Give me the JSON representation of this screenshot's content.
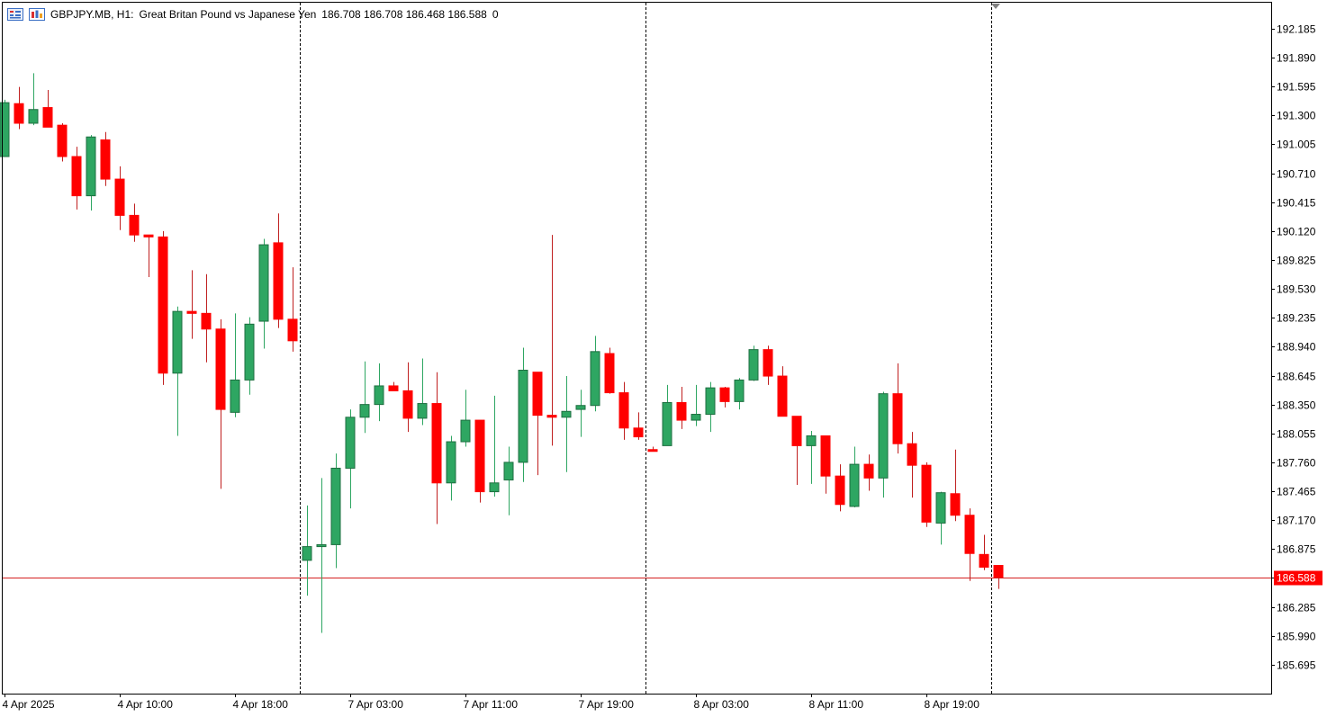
{
  "header": {
    "symbol": "GBPJPY.MB, H1:",
    "description": "Great Britan Pound vs Japanese Yen",
    "ohlc": "186.708 186.708 186.468 186.588",
    "volume": "0"
  },
  "icons": {
    "menu": "chart-menu-icon",
    "indicator": "chart-window-icon"
  },
  "colors": {
    "bull": "#2ea662",
    "bear": "#ff0000",
    "bear_wick": "#c02020",
    "price_line": "#d42020",
    "price_label_bg": "#ff0000",
    "axis": "#000000"
  },
  "chart_data": {
    "type": "candlestick",
    "y_axis": {
      "min": 185.4,
      "max": 192.45,
      "ticks": [
        "192.185",
        "191.890",
        "191.595",
        "191.300",
        "191.005",
        "190.710",
        "190.415",
        "190.120",
        "189.825",
        "189.530",
        "189.235",
        "188.940",
        "188.645",
        "188.350",
        "188.055",
        "187.760",
        "187.465",
        "187.170",
        "186.875",
        "186.580",
        "186.285",
        "185.990",
        "185.695"
      ]
    },
    "x_labels": [
      {
        "label": "4 Apr 2025",
        "index": 0
      },
      {
        "label": "4 Apr 10:00",
        "index": 8
      },
      {
        "label": "4 Apr 18:00",
        "index": 16
      },
      {
        "label": "7 Apr 03:00",
        "index": 24
      },
      {
        "label": "7 Apr 11:00",
        "index": 32
      },
      {
        "label": "7 Apr 19:00",
        "index": 40
      },
      {
        "label": "8 Apr 03:00",
        "index": 48
      },
      {
        "label": "8 Apr 11:00",
        "index": 56
      },
      {
        "label": "8 Apr 19:00",
        "index": 64
      }
    ],
    "period_separators": [
      20.5,
      44.5,
      68.5
    ],
    "current_price": "186.588",
    "candles": [
      {
        "o": 190.88,
        "h": 191.46,
        "l": 190.88,
        "c": 191.43
      },
      {
        "o": 191.42,
        "h": 191.59,
        "l": 191.16,
        "c": 191.22
      },
      {
        "o": 191.22,
        "h": 191.73,
        "l": 191.2,
        "c": 191.36
      },
      {
        "o": 191.38,
        "h": 191.56,
        "l": 191.18,
        "c": 191.18
      },
      {
        "o": 191.2,
        "h": 191.22,
        "l": 190.83,
        "c": 190.88
      },
      {
        "o": 190.88,
        "h": 190.98,
        "l": 190.34,
        "c": 190.48
      },
      {
        "o": 190.48,
        "h": 191.1,
        "l": 190.33,
        "c": 191.08
      },
      {
        "o": 191.05,
        "h": 191.13,
        "l": 190.58,
        "c": 190.65
      },
      {
        "o": 190.65,
        "h": 190.78,
        "l": 190.13,
        "c": 190.28
      },
      {
        "o": 190.28,
        "h": 190.4,
        "l": 190.01,
        "c": 190.08
      },
      {
        "o": 190.08,
        "h": 190.08,
        "l": 189.65,
        "c": 190.06
      },
      {
        "o": 190.06,
        "h": 190.12,
        "l": 188.55,
        "c": 188.67
      },
      {
        "o": 188.67,
        "h": 189.35,
        "l": 188.03,
        "c": 189.3
      },
      {
        "o": 189.3,
        "h": 189.72,
        "l": 189.02,
        "c": 189.28
      },
      {
        "o": 189.28,
        "h": 189.68,
        "l": 188.78,
        "c": 189.12
      },
      {
        "o": 189.12,
        "h": 189.22,
        "l": 187.49,
        "c": 188.3
      },
      {
        "o": 188.27,
        "h": 189.28,
        "l": 188.22,
        "c": 188.6
      },
      {
        "o": 188.6,
        "h": 189.24,
        "l": 188.45,
        "c": 189.17
      },
      {
        "o": 189.2,
        "h": 190.04,
        "l": 188.92,
        "c": 189.98
      },
      {
        "o": 190.0,
        "h": 190.3,
        "l": 189.13,
        "c": 189.22
      },
      {
        "o": 189.22,
        "h": 189.75,
        "l": 188.89,
        "c": 189.0
      },
      {
        "o": 186.76,
        "h": 187.32,
        "l": 186.4,
        "c": 186.9
      },
      {
        "o": 186.9,
        "h": 187.6,
        "l": 186.02,
        "c": 186.92
      },
      {
        "o": 186.92,
        "h": 187.85,
        "l": 186.68,
        "c": 187.7
      },
      {
        "o": 187.7,
        "h": 188.3,
        "l": 187.29,
        "c": 188.22
      },
      {
        "o": 188.22,
        "h": 188.79,
        "l": 188.06,
        "c": 188.35
      },
      {
        "o": 188.35,
        "h": 188.77,
        "l": 188.18,
        "c": 188.54
      },
      {
        "o": 188.54,
        "h": 188.58,
        "l": 188.51,
        "c": 188.49
      },
      {
        "o": 188.49,
        "h": 188.78,
        "l": 188.07,
        "c": 188.21
      },
      {
        "o": 188.21,
        "h": 188.82,
        "l": 188.14,
        "c": 188.36
      },
      {
        "o": 188.36,
        "h": 188.68,
        "l": 187.13,
        "c": 187.55
      },
      {
        "o": 187.55,
        "h": 188.03,
        "l": 187.37,
        "c": 187.97
      },
      {
        "o": 187.97,
        "h": 188.5,
        "l": 187.92,
        "c": 188.19
      },
      {
        "o": 188.19,
        "h": 188.19,
        "l": 187.35,
        "c": 187.46
      },
      {
        "o": 187.46,
        "h": 188.44,
        "l": 187.41,
        "c": 187.55
      },
      {
        "o": 187.58,
        "h": 187.92,
        "l": 187.22,
        "c": 187.76
      },
      {
        "o": 187.76,
        "h": 188.93,
        "l": 187.56,
        "c": 188.7
      },
      {
        "o": 188.68,
        "h": 188.68,
        "l": 187.63,
        "c": 188.24
      },
      {
        "o": 188.24,
        "h": 190.08,
        "l": 187.93,
        "c": 188.22
      },
      {
        "o": 188.22,
        "h": 188.64,
        "l": 187.66,
        "c": 188.28
      },
      {
        "o": 188.3,
        "h": 188.5,
        "l": 188.02,
        "c": 188.34
      },
      {
        "o": 188.34,
        "h": 189.05,
        "l": 188.28,
        "c": 188.89
      },
      {
        "o": 188.87,
        "h": 188.93,
        "l": 188.46,
        "c": 188.47
      },
      {
        "o": 188.47,
        "h": 188.58,
        "l": 187.99,
        "c": 188.11
      },
      {
        "o": 188.11,
        "h": 188.27,
        "l": 187.99,
        "c": 188.02
      },
      {
        "o": 187.89,
        "h": 187.92,
        "l": 187.88,
        "c": 187.88
      },
      {
        "o": 187.93,
        "h": 188.55,
        "l": 187.93,
        "c": 188.37
      },
      {
        "o": 188.37,
        "h": 188.53,
        "l": 188.1,
        "c": 188.19
      },
      {
        "o": 188.19,
        "h": 188.55,
        "l": 188.13,
        "c": 188.25
      },
      {
        "o": 188.25,
        "h": 188.58,
        "l": 188.07,
        "c": 188.52
      },
      {
        "o": 188.52,
        "h": 188.53,
        "l": 188.32,
        "c": 188.38
      },
      {
        "o": 188.38,
        "h": 188.62,
        "l": 188.3,
        "c": 188.6
      },
      {
        "o": 188.6,
        "h": 188.95,
        "l": 188.59,
        "c": 188.91
      },
      {
        "o": 188.91,
        "h": 188.95,
        "l": 188.55,
        "c": 188.64
      },
      {
        "o": 188.64,
        "h": 188.74,
        "l": 188.23,
        "c": 188.23
      },
      {
        "o": 188.23,
        "h": 188.23,
        "l": 187.53,
        "c": 187.93
      },
      {
        "o": 187.93,
        "h": 188.08,
        "l": 187.54,
        "c": 188.03
      },
      {
        "o": 188.03,
        "h": 188.03,
        "l": 187.44,
        "c": 187.62
      },
      {
        "o": 187.62,
        "h": 187.74,
        "l": 187.26,
        "c": 187.33
      },
      {
        "o": 187.31,
        "h": 187.92,
        "l": 187.3,
        "c": 187.74
      },
      {
        "o": 187.74,
        "h": 187.84,
        "l": 187.47,
        "c": 187.6
      },
      {
        "o": 187.6,
        "h": 188.48,
        "l": 187.4,
        "c": 188.46
      },
      {
        "o": 188.46,
        "h": 188.77,
        "l": 187.85,
        "c": 187.95
      },
      {
        "o": 187.95,
        "h": 188.07,
        "l": 187.4,
        "c": 187.73
      },
      {
        "o": 187.73,
        "h": 187.76,
        "l": 187.1,
        "c": 187.15
      },
      {
        "o": 187.14,
        "h": 187.46,
        "l": 186.92,
        "c": 187.45
      },
      {
        "o": 187.44,
        "h": 187.89,
        "l": 187.16,
        "c": 187.22
      },
      {
        "o": 187.22,
        "h": 187.29,
        "l": 186.55,
        "c": 186.83
      },
      {
        "o": 186.82,
        "h": 187.02,
        "l": 186.66,
        "c": 186.69
      },
      {
        "o": 186.708,
        "h": 186.708,
        "l": 186.468,
        "c": 186.588
      }
    ]
  }
}
